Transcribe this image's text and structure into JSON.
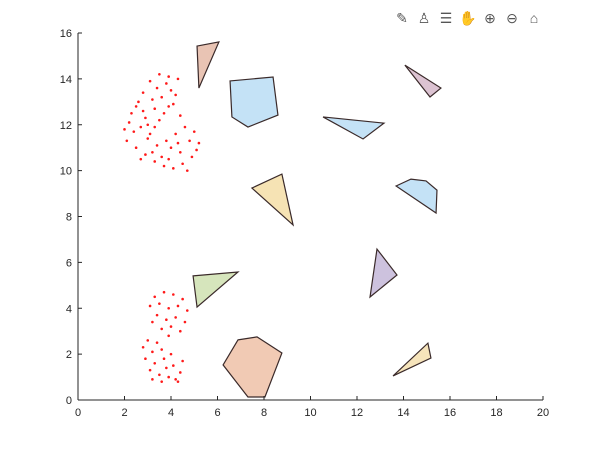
{
  "toolbar": {
    "icons": [
      "brush-icon",
      "data-tips-icon",
      "legend-icon",
      "pan-hand-icon",
      "zoom-in-icon",
      "zoom-out-icon",
      "home-icon"
    ],
    "glyphs": [
      "✎",
      "♙",
      "☰",
      "✋",
      "⊕",
      "⊖",
      "⌂"
    ]
  },
  "chart_data": {
    "type": "scatter",
    "xlim": [
      0,
      20
    ],
    "ylim": [
      0,
      16
    ],
    "xticks": [
      "0",
      "2",
      "4",
      "6",
      "8",
      "10",
      "12",
      "14",
      "16",
      "18",
      "20"
    ],
    "yticks": [
      "0",
      "2",
      "4",
      "6",
      "8",
      "10",
      "12",
      "14",
      "16"
    ],
    "grid": false,
    "point_color": "#ff1a1a",
    "scatter_points": [
      [
        2.2,
        12.1
      ],
      [
        2.5,
        12.8
      ],
      [
        2.8,
        13.4
      ],
      [
        3.1,
        13.9
      ],
      [
        3.5,
        14.2
      ],
      [
        3.9,
        14.1
      ],
      [
        4.3,
        14.0
      ],
      [
        2.4,
        11.7
      ],
      [
        2.9,
        12.3
      ],
      [
        3.3,
        12.7
      ],
      [
        3.6,
        13.2
      ],
      [
        4.0,
        13.5
      ],
      [
        2.7,
        11.9
      ],
      [
        3.2,
        13.1
      ],
      [
        3.7,
        12.5
      ],
      [
        4.1,
        12.9
      ],
      [
        2.0,
        11.8
      ],
      [
        2.6,
        13.0
      ],
      [
        3.0,
        12.0
      ],
      [
        3.4,
        13.6
      ],
      [
        3.8,
        13.8
      ],
      [
        4.2,
        13.3
      ],
      [
        2.3,
        12.5
      ],
      [
        3.1,
        11.6
      ],
      [
        3.5,
        12.2
      ],
      [
        2.8,
        12.6
      ],
      [
        3.9,
        12.8
      ],
      [
        4.4,
        12.4
      ],
      [
        2.1,
        11.3
      ],
      [
        3.3,
        11.9
      ],
      [
        2.5,
        11.0
      ],
      [
        2.9,
        10.7
      ],
      [
        3.3,
        10.4
      ],
      [
        3.7,
        10.2
      ],
      [
        4.1,
        10.1
      ],
      [
        4.5,
        10.3
      ],
      [
        4.9,
        10.6
      ],
      [
        5.2,
        11.2
      ],
      [
        5.0,
        11.7
      ],
      [
        4.6,
        11.9
      ],
      [
        4.2,
        11.6
      ],
      [
        3.8,
        11.3
      ],
      [
        3.4,
        11.1
      ],
      [
        3.0,
        11.4
      ],
      [
        4.4,
        10.8
      ],
      [
        4.8,
        11.3
      ],
      [
        3.6,
        10.6
      ],
      [
        4.0,
        11.0
      ],
      [
        2.7,
        10.5
      ],
      [
        3.2,
        10.8
      ],
      [
        4.7,
        10.0
      ],
      [
        5.1,
        10.9
      ],
      [
        4.3,
        11.2
      ],
      [
        3.9,
        10.5
      ],
      [
        3.3,
        4.5
      ],
      [
        3.7,
        4.7
      ],
      [
        4.1,
        4.6
      ],
      [
        4.5,
        4.4
      ],
      [
        3.1,
        4.1
      ],
      [
        3.5,
        4.2
      ],
      [
        3.9,
        4.0
      ],
      [
        4.3,
        4.1
      ],
      [
        4.7,
        3.9
      ],
      [
        3.4,
        3.7
      ],
      [
        3.8,
        3.5
      ],
      [
        4.2,
        3.6
      ],
      [
        4.6,
        3.4
      ],
      [
        3.6,
        3.1
      ],
      [
        4.0,
        3.2
      ],
      [
        3.2,
        3.4
      ],
      [
        4.4,
        3.0
      ],
      [
        3.9,
        2.8
      ],
      [
        3.0,
        2.6
      ],
      [
        3.4,
        2.5
      ],
      [
        3.2,
        2.1
      ],
      [
        3.6,
        2.2
      ],
      [
        2.9,
        1.8
      ],
      [
        3.3,
        1.6
      ],
      [
        3.7,
        1.8
      ],
      [
        4.1,
        1.5
      ],
      [
        4.4,
        1.2
      ],
      [
        3.1,
        1.3
      ],
      [
        3.5,
        1.1
      ],
      [
        3.9,
        1.0
      ],
      [
        4.3,
        0.8
      ],
      [
        3.6,
        0.8
      ],
      [
        3.2,
        0.9
      ],
      [
        4.5,
        1.7
      ],
      [
        4.0,
        2.0
      ],
      [
        2.8,
        2.3
      ],
      [
        3.8,
        1.4
      ],
      [
        4.2,
        0.9
      ]
    ],
    "polygons": [
      {
        "fill": "#e9c4b4",
        "vertices": [
          [
            5.12,
            15.43
          ],
          [
            6.06,
            15.61
          ],
          [
            5.2,
            13.6
          ]
        ]
      },
      {
        "fill": "#c4e2f6",
        "vertices": [
          [
            6.54,
            13.91
          ],
          [
            8.39,
            14.08
          ],
          [
            8.6,
            12.42
          ],
          [
            7.31,
            11.9
          ],
          [
            6.62,
            12.34
          ]
        ]
      },
      {
        "fill": "#dcc3d2",
        "vertices": [
          [
            14.06,
            14.6
          ],
          [
            15.61,
            13.6
          ],
          [
            15.14,
            13.21
          ]
        ]
      },
      {
        "fill": "#c4e2f6",
        "vertices": [
          [
            10.54,
            12.34
          ],
          [
            13.16,
            12.07
          ],
          [
            12.26,
            11.38
          ]
        ]
      },
      {
        "fill": "#f6e3b4",
        "vertices": [
          [
            7.48,
            9.24
          ],
          [
            8.77,
            9.85
          ],
          [
            9.25,
            7.63
          ]
        ]
      },
      {
        "fill": "#c4e2f6",
        "vertices": [
          [
            13.68,
            9.33
          ],
          [
            14.32,
            9.63
          ],
          [
            14.97,
            9.55
          ],
          [
            15.44,
            9.15
          ],
          [
            15.4,
            8.15
          ]
        ]
      },
      {
        "fill": "#cdc2de",
        "vertices": [
          [
            12.86,
            6.58
          ],
          [
            13.72,
            5.45
          ],
          [
            12.56,
            4.49
          ]
        ]
      },
      {
        "fill": "#d6e5bc",
        "vertices": [
          [
            4.95,
            5.41
          ],
          [
            6.88,
            5.58
          ],
          [
            5.12,
            4.05
          ]
        ]
      },
      {
        "fill": "#f1cab4",
        "vertices": [
          [
            6.88,
            2.62
          ],
          [
            7.7,
            2.75
          ],
          [
            8.77,
            2.05
          ],
          [
            8.04,
            0.13
          ],
          [
            7.31,
            0.13
          ],
          [
            6.24,
            1.53
          ]
        ]
      },
      {
        "fill": "#f6e4bb",
        "vertices": [
          [
            13.55,
            1.05
          ],
          [
            15.05,
            2.48
          ],
          [
            15.18,
            1.83
          ]
        ]
      }
    ]
  }
}
